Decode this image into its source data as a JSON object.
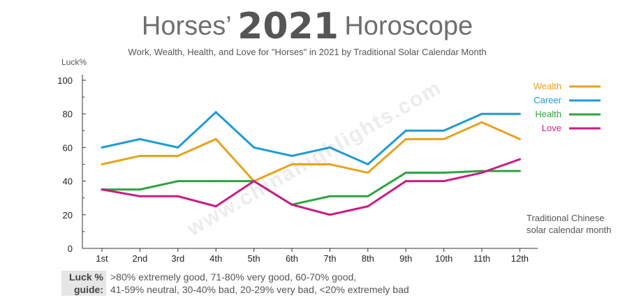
{
  "title": {
    "pre": "Horses’",
    "year": "2021",
    "post": "Horoscope"
  },
  "subtitle": "Work, Wealth, Health, and Love for \"Horses\" in 2021 by Traditional Solar Calendar Month",
  "watermark": "www.chinahighlights.com",
  "x_note": [
    "Traditional Chinese",
    "solar calendar month"
  ],
  "guide": {
    "label": [
      "Luck %",
      "guide:"
    ],
    "lines": [
      ">80% extremely good, 71-80% very good, 60-70% good,",
      "41-59% neutral, 30-40% bad, 20-29% very bad, <20% extremely bad"
    ]
  },
  "chart_data": {
    "type": "line",
    "ylabel": "Luck%",
    "xlabel": "",
    "ylim": [
      0,
      100
    ],
    "yticks": [
      0,
      20,
      40,
      60,
      80,
      100
    ],
    "categories": [
      "1st",
      "2nd",
      "3rd",
      "4th",
      "5th",
      "6th",
      "7th",
      "8th",
      "9th",
      "10th",
      "11th",
      "12th"
    ],
    "legend_position": "top-right",
    "grid": false,
    "series": [
      {
        "name": "Wealth",
        "color": "#e8a21c",
        "values": [
          50,
          55,
          55,
          65,
          40,
          50,
          50,
          45,
          65,
          65,
          75,
          65
        ]
      },
      {
        "name": "Career",
        "color": "#1e9ad6",
        "values": [
          60,
          65,
          60,
          81,
          60,
          55,
          60,
          50,
          70,
          70,
          80,
          80
        ]
      },
      {
        "name": "Health",
        "color": "#2ea33f",
        "values": [
          35,
          35,
          40,
          40,
          40,
          26,
          31,
          31,
          45,
          45,
          46,
          46
        ]
      },
      {
        "name": "Love",
        "color": "#cc1a86",
        "values": [
          35,
          31,
          31,
          25,
          40,
          26,
          20,
          25,
          40,
          40,
          45,
          53
        ]
      }
    ]
  }
}
